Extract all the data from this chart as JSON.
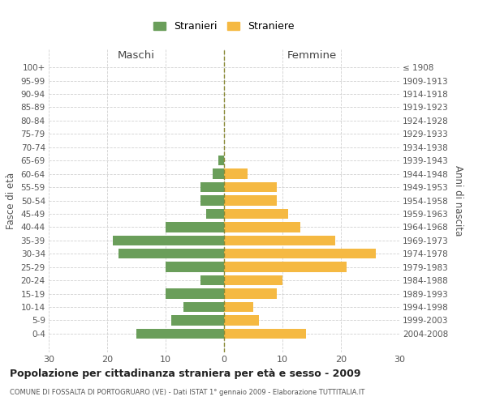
{
  "age_groups": [
    "100+",
    "95-99",
    "90-94",
    "85-89",
    "80-84",
    "75-79",
    "70-74",
    "65-69",
    "60-64",
    "55-59",
    "50-54",
    "45-49",
    "40-44",
    "35-39",
    "30-34",
    "25-29",
    "20-24",
    "15-19",
    "10-14",
    "5-9",
    "0-4"
  ],
  "birth_years": [
    "≤ 1908",
    "1909-1913",
    "1914-1918",
    "1919-1923",
    "1924-1928",
    "1929-1933",
    "1934-1938",
    "1939-1943",
    "1944-1948",
    "1949-1953",
    "1954-1958",
    "1959-1963",
    "1964-1968",
    "1969-1973",
    "1974-1978",
    "1979-1983",
    "1984-1988",
    "1989-1993",
    "1994-1998",
    "1999-2003",
    "2004-2008"
  ],
  "males": [
    0,
    0,
    0,
    0,
    0,
    0,
    0,
    1,
    2,
    4,
    4,
    3,
    10,
    19,
    18,
    10,
    4,
    10,
    7,
    9,
    15
  ],
  "females": [
    0,
    0,
    0,
    0,
    0,
    0,
    0,
    0,
    4,
    9,
    9,
    11,
    13,
    19,
    26,
    21,
    10,
    9,
    5,
    6,
    14
  ],
  "male_color": "#6a9e5a",
  "female_color": "#f5b942",
  "male_label": "Stranieri",
  "female_label": "Straniere",
  "title": "Popolazione per cittadinanza straniera per età e sesso - 2009",
  "subtitle": "COMUNE DI FOSSALTA DI PORTOGRUARO (VE) - Dati ISTAT 1° gennaio 2009 - Elaborazione TUTTITALIA.IT",
  "xlabel_left": "Maschi",
  "xlabel_right": "Femmine",
  "ylabel_left": "Fasce di età",
  "ylabel_right": "Anni di nascita",
  "xlim": [
    -30,
    30
  ],
  "xticks": [
    -30,
    -20,
    -10,
    0,
    10,
    20,
    30
  ],
  "xticklabels": [
    "30",
    "20",
    "10",
    "0",
    "10",
    "20",
    "30"
  ],
  "background_color": "#ffffff",
  "grid_color": "#cccccc",
  "bar_height": 0.75
}
